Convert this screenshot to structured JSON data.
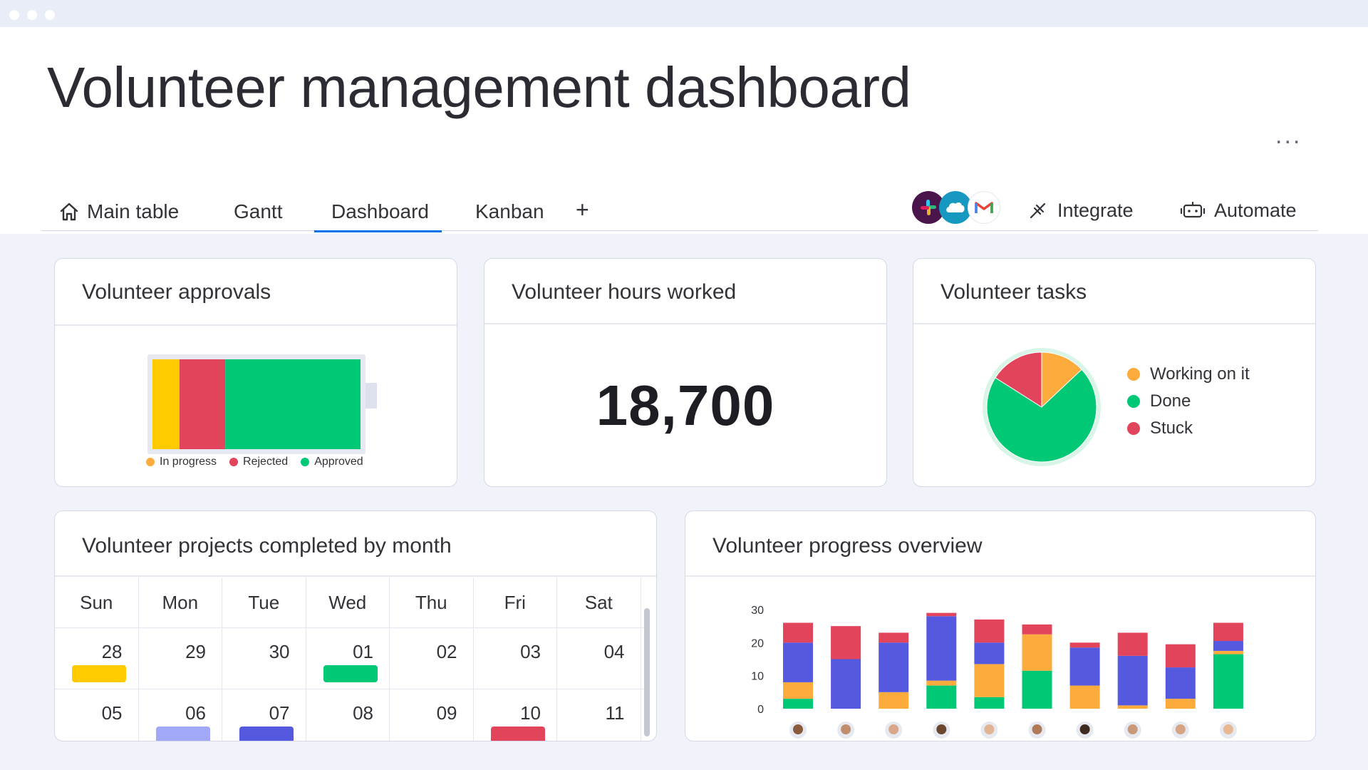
{
  "page": {
    "title": "Volunteer management dashboard",
    "more_label": "..."
  },
  "tabs": [
    {
      "label": "Main table",
      "icon": "home-icon"
    },
    {
      "label": "Gantt"
    },
    {
      "label": "Dashboard",
      "active": true
    },
    {
      "label": "Kanban"
    }
  ],
  "add_tab_label": "+",
  "integrations": {
    "logos": [
      "slack-icon",
      "salesforce-icon",
      "gmail-icon"
    ],
    "integrate_label": "Integrate",
    "automate_label": "Automate"
  },
  "colors": {
    "yellow": "#ffcb00",
    "red": "#e2445c",
    "green": "#00c875",
    "orange": "#fdab3d",
    "blue": "#5559df",
    "light_blue": "#a1a8f8",
    "accent": "#0073ea"
  },
  "widgets": {
    "approvals": {
      "title": "Volunteer approvals",
      "segments": [
        {
          "label": "In progress",
          "fraction": 0.13,
          "color": "#ffcb00"
        },
        {
          "label": "Rejected",
          "fraction": 0.22,
          "color": "#e2445c"
        },
        {
          "label": "Approved",
          "fraction": 0.65,
          "color": "#00c875"
        }
      ],
      "legend_dot_colors": [
        "#fdab3d",
        "#e2445c",
        "#00c875"
      ]
    },
    "hours": {
      "title": "Volunteer hours worked",
      "value": "18,700"
    },
    "tasks": {
      "title": "Volunteer tasks",
      "legend": [
        {
          "label": "Working on it",
          "color": "#fdab3d",
          "share": 0.13
        },
        {
          "label": "Done",
          "color": "#00c875",
          "share": 0.71
        },
        {
          "label": "Stuck",
          "color": "#e2445c",
          "share": 0.16
        }
      ]
    },
    "calendar": {
      "title": "Volunteer projects completed by month",
      "weekdays": [
        "Sun",
        "Mon",
        "Tue",
        "Wed",
        "Thu",
        "Fri",
        "Sat"
      ],
      "rows": [
        [
          {
            "day": "28",
            "color": "#ffcb00"
          },
          {
            "day": "29"
          },
          {
            "day": "30"
          },
          {
            "day": "01",
            "color": "#00c875"
          },
          {
            "day": "02"
          },
          {
            "day": "03"
          },
          {
            "day": "04"
          }
        ],
        [
          {
            "day": "05"
          },
          {
            "day": "06",
            "color": "#a1a8f8"
          },
          {
            "day": "07",
            "color": "#5559df"
          },
          {
            "day": "08"
          },
          {
            "day": "09"
          },
          {
            "day": "10",
            "color": "#e2445c"
          },
          {
            "day": "11"
          }
        ]
      ]
    },
    "progress": {
      "title": "Volunteer progress overview"
    }
  },
  "chart_data": {
    "type": "bar",
    "stacked": true,
    "categories": [
      "Person 1",
      "Person 2",
      "Person 3",
      "Person 4",
      "Person 5",
      "Person 6",
      "Person 7",
      "Person 8",
      "Person 9",
      "Person 10"
    ],
    "category_display": "avatars",
    "yticks": [
      0,
      10,
      20,
      30
    ],
    "ylim": [
      0,
      30
    ],
    "grid": false,
    "series": [
      {
        "color": "#00c875",
        "values": [
          3,
          0,
          0,
          7,
          3.5,
          11.5,
          0,
          0,
          0,
          16.5
        ]
      },
      {
        "color": "#fdab3d",
        "values": [
          5,
          0,
          5,
          1.5,
          10,
          11,
          7,
          1,
          3,
          1
        ]
      },
      {
        "color": "#5559df",
        "values": [
          12,
          15,
          15,
          19.5,
          6.5,
          0,
          11.5,
          15,
          9.5,
          3
        ]
      },
      {
        "color": "#e2445c",
        "values": [
          6,
          10,
          3,
          1,
          7,
          3,
          1.5,
          7,
          7,
          5.5
        ]
      }
    ]
  }
}
